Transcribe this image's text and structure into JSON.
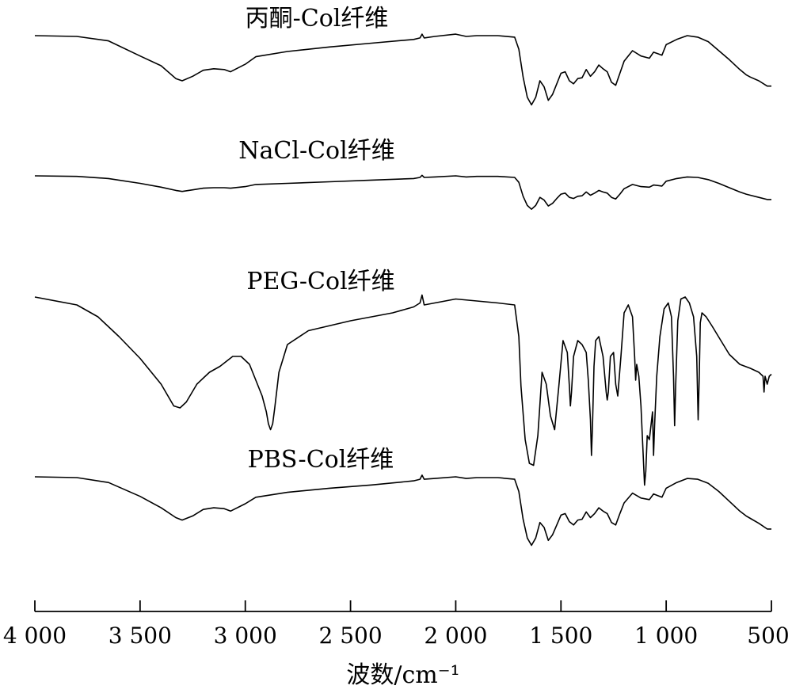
{
  "chart_data": {
    "type": "line",
    "xlabel": "波数/cm⁻¹",
    "xlim": [
      4000,
      500
    ],
    "x_ticks": [
      4000,
      3500,
      3000,
      2500,
      2000,
      1500,
      1000,
      500
    ],
    "x_tick_labels": [
      "4 000",
      "3 500",
      "3 000",
      "2 500",
      "2 000",
      "1 500",
      "1 000",
      "500"
    ],
    "ylabel": "",
    "y_ticks_shown": false,
    "grid": false,
    "note_offsets": "spectra are vertically stacked; y values are relative transmittance in arbitrary units (1 = top of each trace band)",
    "series": [
      {
        "name": "丙酮-Col纤维",
        "x": [
          4000,
          3800,
          3650,
          3500,
          3400,
          3330,
          3300,
          3250,
          3200,
          3150,
          3100,
          3070,
          3000,
          2950,
          2800,
          2600,
          2400,
          2200,
          2170,
          2160,
          2150,
          2100,
          2000,
          1950,
          1900,
          1800,
          1720,
          1700,
          1680,
          1660,
          1640,
          1620,
          1600,
          1580,
          1560,
          1540,
          1520,
          1500,
          1480,
          1460,
          1440,
          1420,
          1400,
          1380,
          1360,
          1340,
          1320,
          1300,
          1280,
          1260,
          1240,
          1220,
          1200,
          1160,
          1120,
          1080,
          1060,
          1040,
          1020,
          1000,
          950,
          900,
          850,
          800,
          750,
          700,
          650,
          620,
          600,
          560,
          520,
          500
        ],
        "y": [
          1.0,
          0.99,
          0.93,
          0.73,
          0.6,
          0.43,
          0.4,
          0.46,
          0.54,
          0.56,
          0.55,
          0.52,
          0.62,
          0.72,
          0.79,
          0.85,
          0.9,
          0.95,
          0.97,
          1.02,
          0.97,
          0.99,
          1.02,
          0.99,
          1.0,
          1.0,
          0.98,
          0.82,
          0.45,
          0.18,
          0.08,
          0.18,
          0.4,
          0.32,
          0.14,
          0.22,
          0.36,
          0.5,
          0.52,
          0.4,
          0.36,
          0.43,
          0.44,
          0.55,
          0.46,
          0.52,
          0.61,
          0.56,
          0.52,
          0.38,
          0.34,
          0.5,
          0.66,
          0.8,
          0.73,
          0.7,
          0.78,
          0.76,
          0.74,
          0.88,
          0.95,
          1.0,
          0.98,
          0.92,
          0.8,
          0.68,
          0.55,
          0.48,
          0.45,
          0.4,
          0.33,
          0.33
        ]
      },
      {
        "name": "NaCl-Col纤维",
        "x": [
          4000,
          3800,
          3650,
          3500,
          3400,
          3330,
          3300,
          3250,
          3200,
          3150,
          3100,
          3070,
          3000,
          2950,
          2800,
          2600,
          2400,
          2200,
          2170,
          2160,
          2150,
          2100,
          2000,
          1950,
          1900,
          1800,
          1720,
          1700,
          1680,
          1660,
          1640,
          1620,
          1600,
          1580,
          1560,
          1540,
          1520,
          1500,
          1480,
          1460,
          1440,
          1420,
          1400,
          1380,
          1360,
          1340,
          1320,
          1300,
          1280,
          1260,
          1240,
          1220,
          1200,
          1160,
          1120,
          1080,
          1060,
          1040,
          1020,
          1000,
          950,
          900,
          850,
          800,
          750,
          700,
          650,
          620,
          600,
          560,
          520,
          500
        ],
        "y": [
          1.0,
          0.99,
          0.95,
          0.86,
          0.79,
          0.73,
          0.71,
          0.74,
          0.77,
          0.78,
          0.78,
          0.77,
          0.8,
          0.84,
          0.86,
          0.89,
          0.92,
          0.95,
          0.97,
          1.01,
          0.97,
          0.98,
          1.0,
          0.98,
          0.99,
          0.99,
          0.97,
          0.88,
          0.62,
          0.45,
          0.38,
          0.45,
          0.6,
          0.55,
          0.44,
          0.49,
          0.58,
          0.66,
          0.68,
          0.6,
          0.58,
          0.62,
          0.63,
          0.7,
          0.64,
          0.68,
          0.73,
          0.7,
          0.68,
          0.6,
          0.57,
          0.66,
          0.76,
          0.84,
          0.8,
          0.79,
          0.83,
          0.82,
          0.81,
          0.9,
          0.95,
          0.98,
          0.97,
          0.93,
          0.86,
          0.78,
          0.7,
          0.66,
          0.64,
          0.6,
          0.56,
          0.56
        ]
      },
      {
        "name": "PEG-Col纤维",
        "x": [
          4000,
          3800,
          3700,
          3600,
          3500,
          3400,
          3340,
          3310,
          3280,
          3230,
          3170,
          3120,
          3060,
          3020,
          2980,
          2950,
          2920,
          2900,
          2890,
          2880,
          2870,
          2860,
          2840,
          2800,
          2700,
          2500,
          2300,
          2200,
          2170,
          2160,
          2150,
          2100,
          2000,
          1900,
          1800,
          1720,
          1700,
          1690,
          1670,
          1650,
          1630,
          1610,
          1590,
          1570,
          1550,
          1530,
          1510,
          1490,
          1470,
          1460,
          1455,
          1450,
          1440,
          1420,
          1400,
          1380,
          1370,
          1360,
          1355,
          1350,
          1343,
          1335,
          1320,
          1300,
          1285,
          1280,
          1275,
          1265,
          1250,
          1240,
          1230,
          1215,
          1200,
          1180,
          1160,
          1150,
          1145,
          1140,
          1130,
          1120,
          1110,
          1103,
          1097,
          1090,
          1080,
          1065,
          1060,
          1055,
          1045,
          1030,
          1010,
          990,
          975,
          965,
          960,
          955,
          945,
          930,
          910,
          890,
          870,
          855,
          848,
          843,
          838,
          830,
          810,
          780,
          740,
          700,
          650,
          600,
          560,
          540,
          535,
          530,
          520,
          510,
          500
        ],
        "y": [
          1.0,
          0.96,
          0.9,
          0.8,
          0.69,
          0.56,
          0.45,
          0.44,
          0.47,
          0.56,
          0.62,
          0.65,
          0.7,
          0.7,
          0.66,
          0.58,
          0.5,
          0.42,
          0.36,
          0.33,
          0.36,
          0.44,
          0.62,
          0.76,
          0.83,
          0.88,
          0.92,
          0.95,
          0.97,
          1.01,
          0.96,
          0.97,
          0.99,
          0.98,
          0.97,
          0.96,
          0.8,
          0.55,
          0.28,
          0.16,
          0.15,
          0.3,
          0.62,
          0.56,
          0.4,
          0.33,
          0.55,
          0.78,
          0.72,
          0.55,
          0.45,
          0.52,
          0.7,
          0.78,
          0.76,
          0.72,
          0.58,
          0.38,
          0.2,
          0.35,
          0.65,
          0.78,
          0.8,
          0.7,
          0.52,
          0.48,
          0.52,
          0.7,
          0.72,
          0.56,
          0.5,
          0.7,
          0.92,
          0.96,
          0.9,
          0.7,
          0.58,
          0.66,
          0.6,
          0.45,
          0.22,
          0.05,
          0.12,
          0.3,
          0.28,
          0.42,
          0.2,
          0.35,
          0.6,
          0.8,
          0.94,
          0.97,
          0.9,
          0.6,
          0.35,
          0.55,
          0.88,
          0.99,
          1.0,
          0.97,
          0.9,
          0.7,
          0.38,
          0.6,
          0.87,
          0.92,
          0.9,
          0.85,
          0.78,
          0.71,
          0.66,
          0.64,
          0.62,
          0.6,
          0.52,
          0.6,
          0.56,
          0.6,
          0.61
        ]
      },
      {
        "name": "PBS-Col纤维",
        "x": [
          4000,
          3800,
          3650,
          3500,
          3400,
          3330,
          3300,
          3250,
          3200,
          3150,
          3100,
          3070,
          3000,
          2950,
          2800,
          2600,
          2400,
          2200,
          2170,
          2160,
          2150,
          2100,
          2000,
          1950,
          1900,
          1800,
          1720,
          1700,
          1680,
          1660,
          1640,
          1620,
          1600,
          1580,
          1560,
          1540,
          1520,
          1500,
          1480,
          1460,
          1440,
          1420,
          1400,
          1380,
          1360,
          1340,
          1320,
          1300,
          1280,
          1260,
          1240,
          1220,
          1200,
          1160,
          1120,
          1080,
          1060,
          1040,
          1020,
          1000,
          950,
          900,
          850,
          800,
          750,
          700,
          650,
          620,
          600,
          560,
          520,
          500
        ],
        "y": [
          1.0,
          0.99,
          0.93,
          0.76,
          0.62,
          0.5,
          0.47,
          0.52,
          0.6,
          0.62,
          0.61,
          0.58,
          0.67,
          0.75,
          0.81,
          0.86,
          0.9,
          0.95,
          0.97,
          1.02,
          0.97,
          0.98,
          1.0,
          0.98,
          0.99,
          0.99,
          0.97,
          0.82,
          0.48,
          0.25,
          0.16,
          0.25,
          0.44,
          0.38,
          0.22,
          0.29,
          0.41,
          0.53,
          0.55,
          0.45,
          0.41,
          0.47,
          0.48,
          0.57,
          0.5,
          0.55,
          0.62,
          0.58,
          0.55,
          0.44,
          0.41,
          0.55,
          0.68,
          0.8,
          0.74,
          0.72,
          0.79,
          0.77,
          0.75,
          0.86,
          0.93,
          0.98,
          0.97,
          0.92,
          0.82,
          0.7,
          0.58,
          0.52,
          0.49,
          0.43,
          0.36,
          0.36
        ]
      }
    ]
  }
}
